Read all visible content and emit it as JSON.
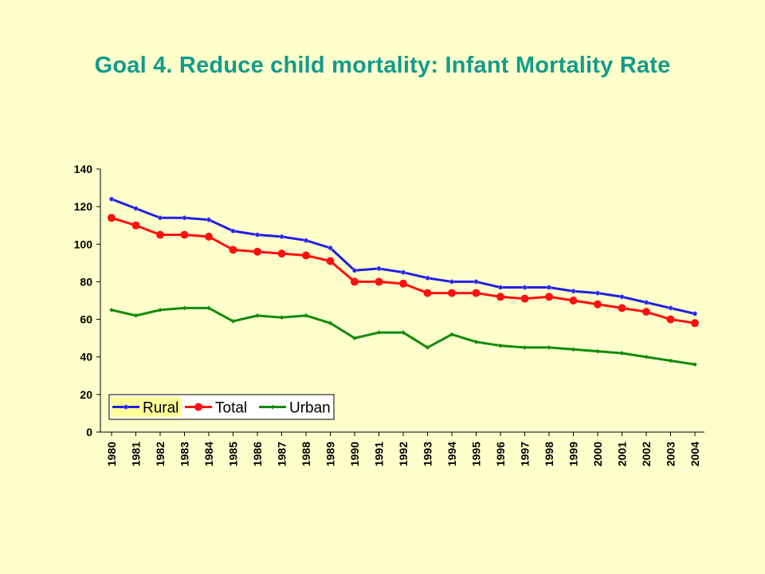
{
  "slide": {
    "title": "Goal 4. Reduce child mortality: Infant Mortality Rate",
    "background": "#FFFFCC",
    "title_color": "#139B8C"
  },
  "chart_data": {
    "type": "line",
    "title": "",
    "xlabel": "",
    "ylabel": "",
    "x": [
      "1980",
      "1981",
      "1982",
      "1983",
      "1984",
      "1985",
      "1986",
      "1987",
      "1988",
      "1989",
      "1990",
      "1991",
      "1992",
      "1993",
      "1994",
      "1995",
      "1996",
      "1997",
      "1998",
      "1999",
      "2000",
      "2001",
      "2002",
      "2003",
      "2004"
    ],
    "ylim": [
      0,
      140
    ],
    "yticks": [
      0,
      20,
      40,
      60,
      80,
      100,
      120,
      140
    ],
    "grid": false,
    "legend": "bottom-left",
    "series": [
      {
        "name": "Rural",
        "color": "#1F1FE0",
        "marker": "small-circle",
        "values": [
          124,
          119,
          114,
          114,
          113,
          107,
          105,
          104,
          102,
          98,
          86,
          87,
          85,
          82,
          80,
          80,
          77,
          77,
          77,
          75,
          74,
          72,
          69,
          66,
          63
        ]
      },
      {
        "name": "Total",
        "color": "#FF1010",
        "marker": "circle",
        "values": [
          114,
          110,
          105,
          105,
          104,
          97,
          96,
          95,
          94,
          91,
          80,
          80,
          79,
          74,
          74,
          74,
          72,
          71,
          72,
          70,
          68,
          66,
          64,
          60,
          58
        ]
      },
      {
        "name": "Urban",
        "color": "#138A0F",
        "marker": "small-diamond",
        "values": [
          65,
          62,
          65,
          66,
          66,
          59,
          62,
          61,
          62,
          58,
          50,
          53,
          53,
          45,
          52,
          48,
          46,
          45,
          45,
          44,
          43,
          42,
          40,
          38,
          36
        ]
      }
    ]
  }
}
